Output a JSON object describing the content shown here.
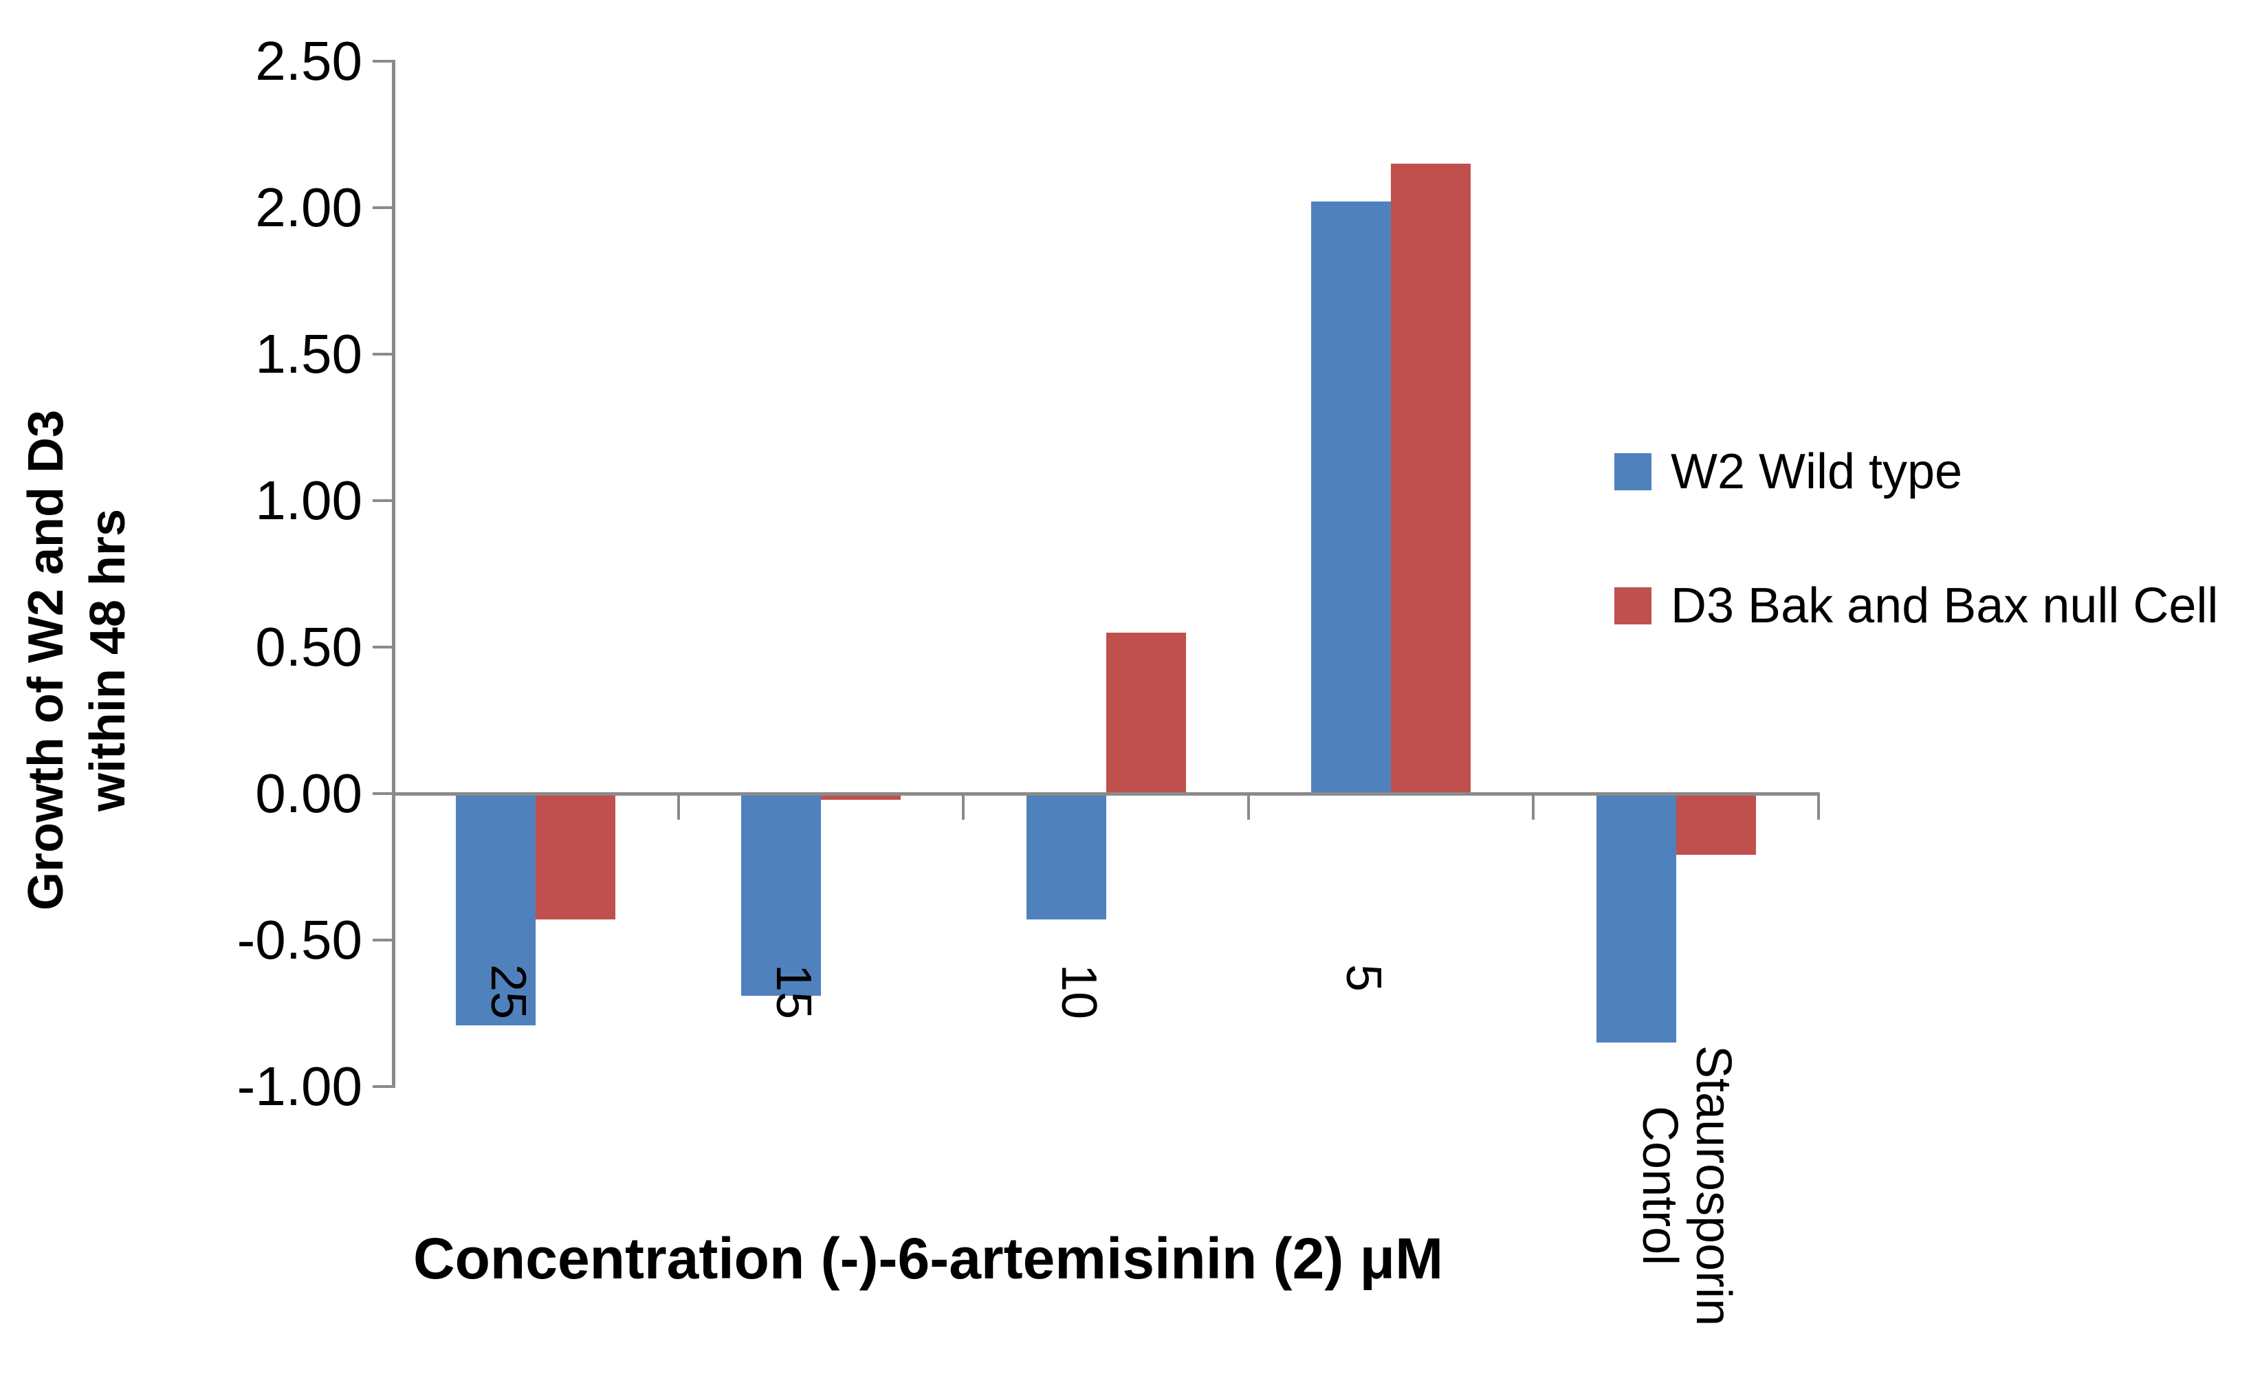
{
  "chart_data": {
    "type": "bar",
    "title": "",
    "xlabel": "Concentration (-)-6-artemisinin (2) μM",
    "ylabel": "Growth of W2 and D3 within 48 hrs",
    "ylabel_lines": [
      "Growth of W2 and D3",
      "within 48 hrs"
    ],
    "categories": [
      "25",
      "15",
      "10",
      "5",
      "Staurosporin Control"
    ],
    "category_label_lines": [
      [
        "25"
      ],
      [
        "15"
      ],
      [
        "10"
      ],
      [
        "5"
      ],
      [
        "Staurosporin",
        "Control"
      ]
    ],
    "series": [
      {
        "name": "W2 Wild type",
        "color": "#4f81bd",
        "values": [
          -0.79,
          -0.69,
          -0.43,
          2.02,
          -0.85
        ]
      },
      {
        "name": "D3 Bak and Bax null Cell",
        "color": "#c0504d",
        "values": [
          -0.43,
          -0.02,
          0.55,
          2.15,
          -0.21
        ]
      }
    ],
    "ylim": [
      -1.0,
      2.5
    ],
    "ytick_step": 0.5,
    "y_ticks": [
      "2.50",
      "2.00",
      "1.50",
      "1.00",
      "0.50",
      "0.00",
      "-0.50",
      "-1.00"
    ],
    "grid": false,
    "legend_position": "right",
    "axis_color": "#8a8a8a",
    "text_color": "#000000",
    "background_color": "#ffffff"
  }
}
